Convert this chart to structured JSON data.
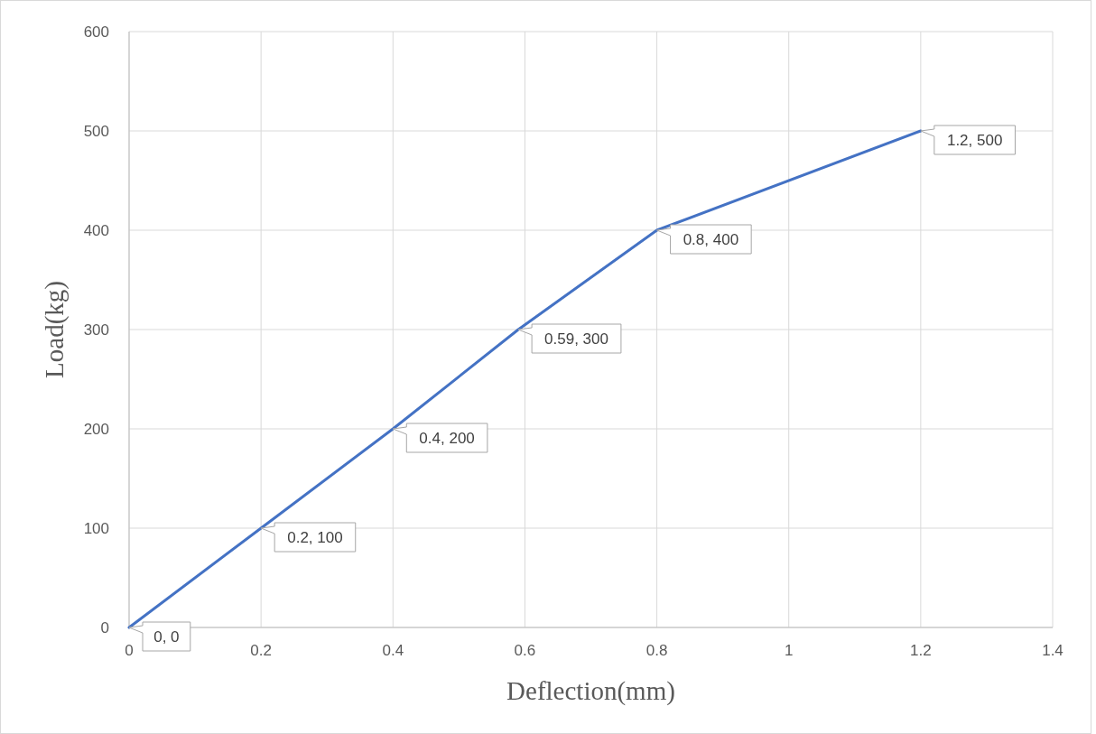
{
  "chart_data": {
    "type": "line",
    "xlabel": "Deflection(mm)",
    "ylabel": "Load(kg)",
    "x": [
      0,
      0.2,
      0.4,
      0.59,
      0.8,
      1.2
    ],
    "series": [
      {
        "color": "#4472c4",
        "values": [
          0,
          100,
          200,
          300,
          400,
          500
        ],
        "value_labels": [
          "0, 0",
          "0.2, 100",
          "0.4, 200",
          "0.59, 300",
          "0.8, 400",
          "1.2, 500"
        ]
      }
    ],
    "xlim": [
      0,
      1.4
    ],
    "xticks": [
      0,
      0.2,
      0.4,
      0.6,
      0.8,
      1,
      1.2,
      1.4
    ],
    "ylim": [
      0,
      600
    ],
    "yticks": [
      0,
      100,
      200,
      300,
      400,
      500,
      600
    ],
    "grid": true,
    "marker": "none",
    "line_style": "solid"
  }
}
